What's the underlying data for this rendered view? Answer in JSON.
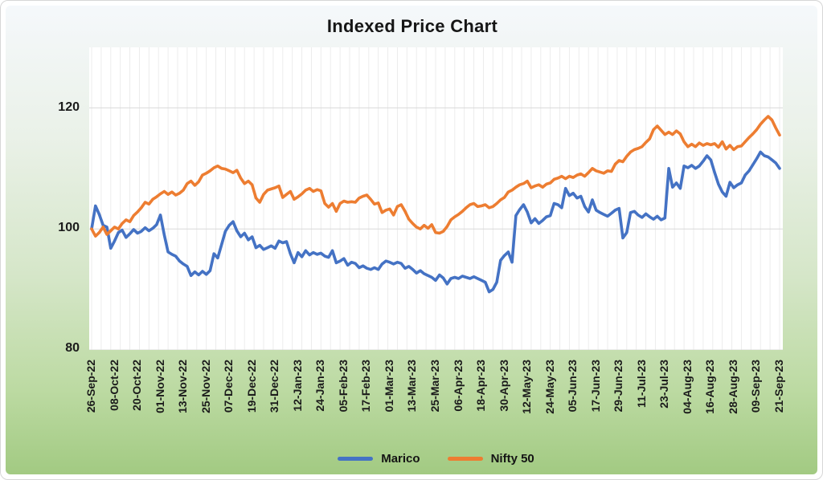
{
  "chart_data": {
    "type": "line",
    "title": "Indexed Price Chart",
    "xlabel": "",
    "ylabel": "",
    "ylim": [
      80,
      130
    ],
    "y_ticks": [
      120,
      100,
      80
    ],
    "y_tick_labels": [
      "120",
      "100",
      "80"
    ],
    "x_range_days": 360,
    "sample_interval_days": 2,
    "x_tick_interval_days": 12,
    "gridline_interval_days": 5,
    "grid": "vertical-and-horizontal",
    "legend_position": "bottom-center",
    "x_tick_labels": [
      "26-Sep-22",
      "08-Oct-22",
      "20-Oct-22",
      "01-Nov-22",
      "13-Nov-22",
      "25-Nov-22",
      "07-Dec-22",
      "19-Dec-22",
      "31-Dec-22",
      "12-Jan-23",
      "24-Jan-23",
      "05-Feb-23",
      "17-Feb-23",
      "01-Mar-23",
      "13-Mar-23",
      "25-Mar-23",
      "06-Apr-23",
      "18-Apr-23",
      "30-Apr-23",
      "12-May-23",
      "24-May-23",
      "05-Jun-23",
      "17-Jun-23",
      "29-Jun-23",
      "11-Jul-23",
      "23-Jul-23",
      "04-Aug-23",
      "16-Aug-23",
      "28-Aug-23",
      "09-Sep-23",
      "21-Sep-23"
    ],
    "series": [
      {
        "name": "Marico",
        "color": "#4472C4",
        "values": [
          100,
          103.8,
          102.4,
          100.6,
          100.3,
          96.8,
          98,
          99.4,
          99.8,
          98.6,
          99.2,
          99.9,
          99.3,
          99.6,
          100.2,
          99.7,
          100.1,
          100.7,
          102.3,
          99,
          96.2,
          95.8,
          95.5,
          94.7,
          94.2,
          93.8,
          92.3,
          92.9,
          92.4,
          93,
          92.5,
          93.1,
          95.9,
          95.2,
          97.4,
          99.6,
          100.6,
          101.2,
          99.7,
          98.7,
          99.3,
          98.2,
          98.7,
          96.9,
          97.3,
          96.6,
          96.9,
          97.2,
          96.8,
          98,
          97.7,
          97.9,
          95.9,
          94.4,
          96.1,
          95.4,
          96.4,
          95.7,
          96.1,
          95.8,
          96,
          95.5,
          95.3,
          96.4,
          94.4,
          94.7,
          95.1,
          94,
          94.5,
          94.3,
          93.6,
          93.9,
          93.5,
          93.3,
          93.6,
          93.3,
          94.2,
          94.7,
          94.5,
          94.2,
          94.5,
          94.3,
          93.5,
          93.8,
          93.3,
          92.7,
          93.1,
          92.6,
          92.3,
          92,
          91.5,
          92.4,
          91.9,
          90.9,
          91.8,
          92,
          91.8,
          92.2,
          92,
          91.8,
          92.1,
          91.8,
          91.5,
          91.2,
          89.6,
          90,
          91.2,
          94.8,
          95.6,
          96.2,
          94.5,
          102.2,
          103.2,
          104,
          102.8,
          101,
          101.7,
          100.9,
          101.4,
          102,
          102.2,
          104.2,
          104,
          103.5,
          106.7,
          105.5,
          105.9,
          105.1,
          105.4,
          103.7,
          102.8,
          104.8,
          103.1,
          102.7,
          102.4,
          102.1,
          102.6,
          103.1,
          103.4,
          98.5,
          99.4,
          102.7,
          102.9,
          102.3,
          101.9,
          102.5,
          102,
          101.6,
          102.1,
          101.5,
          101.8,
          110,
          106.9,
          107.6,
          106.7,
          110.4,
          110.1,
          110.5,
          110,
          110.4,
          111.2,
          112.1,
          111.4,
          109.3,
          107.4,
          106.1,
          105.4,
          107.7,
          106.8,
          107.3,
          107.6,
          108.9,
          109.6,
          110.6,
          111.6,
          112.7,
          112.1,
          111.9,
          111.4,
          110.9,
          110
        ]
      },
      {
        "name": "Nifty 50",
        "color": "#ED7D31",
        "values": [
          100,
          98.8,
          99.4,
          100.3,
          99.1,
          99.7,
          100.3,
          100,
          100.9,
          101.5,
          101.2,
          102.2,
          102.8,
          103.5,
          104.4,
          104.1,
          104.9,
          105.3,
          105.8,
          106.2,
          105.7,
          106.1,
          105.6,
          105.9,
          106.4,
          107.5,
          107.9,
          107.2,
          107.8,
          108.9,
          109.2,
          109.6,
          110.1,
          110.4,
          110,
          109.9,
          109.6,
          109.3,
          109.7,
          108.4,
          107.5,
          107.9,
          107.3,
          105.1,
          104.4,
          105.7,
          106.4,
          106.6,
          106.8,
          107.1,
          105.2,
          105.7,
          106.2,
          104.9,
          105.3,
          105.8,
          106.4,
          106.7,
          106.2,
          106.5,
          106.3,
          104.2,
          103.6,
          104.2,
          102.9,
          104.2,
          104.6,
          104.4,
          104.5,
          104.4,
          105.1,
          105.4,
          105.6,
          104.9,
          104.1,
          104.3,
          102.7,
          103.1,
          103.3,
          102.3,
          103.7,
          104,
          102.9,
          101.6,
          100.9,
          100.3,
          100,
          100.6,
          100.1,
          100.7,
          99.4,
          99.3,
          99.6,
          100.4,
          101.5,
          102,
          102.4,
          102.9,
          103.5,
          104,
          104.2,
          103.7,
          103.8,
          104,
          103.5,
          103.7,
          104.2,
          104.8,
          105.2,
          106.1,
          106.4,
          106.9,
          107.3,
          107.5,
          107.9,
          106.8,
          107.1,
          107.3,
          106.9,
          107.4,
          107.6,
          108.2,
          108.4,
          108.7,
          108.3,
          108.7,
          108.5,
          108.9,
          109.1,
          108.7,
          109.3,
          110,
          109.6,
          109.4,
          109.2,
          109.6,
          109.5,
          110.7,
          111.3,
          111.1,
          112,
          112.7,
          113.1,
          113.3,
          113.6,
          114.3,
          114.9,
          116.4,
          117,
          116.3,
          115.6,
          116,
          115.6,
          116.2,
          115.7,
          114.4,
          113.6,
          114,
          113.6,
          114.2,
          113.8,
          114.1,
          113.9,
          114.1,
          113.5,
          114.4,
          113.2,
          113.8,
          113.1,
          113.6,
          113.7,
          114.4,
          115.1,
          115.7,
          116.4,
          117.3,
          118,
          118.6,
          118,
          116.7,
          115.5
        ]
      }
    ]
  },
  "legend": {
    "items": [
      {
        "label": "Marico",
        "swatch": "blue-line-swatch"
      },
      {
        "label": "Nifty 50",
        "swatch": "orange-line-swatch"
      }
    ]
  },
  "theme": {
    "plot_background": "#ffffff",
    "vertical_gridline_color": "#ececec",
    "horizontal_gridline_color": "#d9d9d9",
    "text_color": "#1b1b1b",
    "background_gradient_top": "#f5f8fb",
    "background_gradient_bottom": "#a2ca82"
  }
}
